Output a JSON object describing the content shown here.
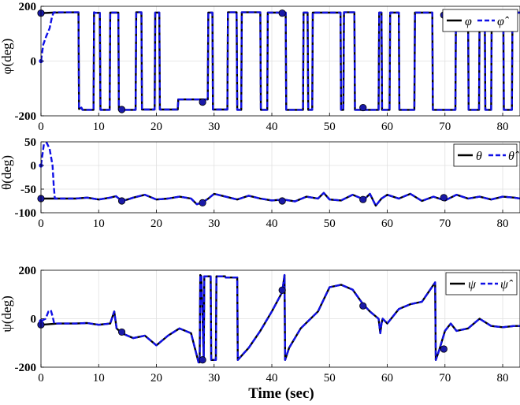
{
  "figure": {
    "xlabel": "Time (sec)"
  },
  "colors": {
    "true": "#000000",
    "estimate": "#1010e6",
    "marker_face": "#1a1aa8"
  },
  "chart_data": [
    {
      "type": "line",
      "ylabel": "φ(deg)",
      "xlim": [
        0,
        83
      ],
      "ylim": [
        -200,
        200
      ],
      "xticks": [
        "0",
        "10",
        "20",
        "30",
        "40",
        "50",
        "60",
        "70",
        "80"
      ],
      "yticks": [
        "200",
        "0",
        "-200"
      ],
      "grid": true,
      "legend_position": "top-right",
      "legend": [
        "φ",
        "φ̂"
      ],
      "series": [
        {
          "name": "φ",
          "style": "solid",
          "x": [
            0,
            2,
            6.5,
            6.6,
            7,
            7.2,
            9.1,
            9.2,
            9.4,
            10.2,
            10.3,
            11.9,
            12.0,
            13.4,
            13.5,
            16.4,
            16.5,
            17.4,
            17.5,
            19.7,
            19.8,
            20.5,
            20.6,
            23.7,
            23.8,
            28.9,
            29.0,
            29.7,
            29.8,
            32.3,
            32.4,
            33.9,
            34.0,
            34.7,
            34.8,
            38.0,
            38.1,
            39.2,
            39.3,
            42.4,
            42.5,
            45.4,
            45.5,
            46.2,
            46.3,
            47.0,
            47.1,
            51.9,
            52.0,
            52.4,
            52.5,
            54.3,
            54.4,
            58.5,
            58.6,
            59.0,
            59.1,
            60.4,
            60.5,
            62.0,
            62.1,
            64.7,
            64.8,
            67.8,
            67.9,
            71.8,
            71.9,
            74.0,
            74.1,
            75.9,
            76.0,
            76.9,
            77.0,
            78.0,
            78.1,
            80.1,
            80.2,
            81.6,
            81.7,
            83
          ],
          "y": [
            175,
            177,
            178,
            -175,
            -170,
            -178,
            -178,
            178,
            176,
            176,
            -178,
            -178,
            177,
            177,
            -178,
            -178,
            178,
            178,
            -177,
            -177,
            177,
            177,
            -177,
            -177,
            -140,
            -140,
            177,
            177,
            -177,
            -177,
            178,
            178,
            -178,
            -178,
            178,
            178,
            -178,
            -178,
            177,
            177,
            -178,
            -178,
            177,
            177,
            -178,
            -178,
            177,
            177,
            -178,
            -178,
            178,
            178,
            -178,
            -178,
            177,
            177,
            -178,
            -178,
            177,
            177,
            -178,
            -178,
            177,
            177,
            -178,
            -178,
            178,
            178,
            -178,
            -178,
            177,
            177,
            -178,
            -178,
            178,
            178,
            -178,
            -178,
            177,
            177
          ]
        },
        {
          "name": "φ̂",
          "style": "dashed",
          "x": [
            0,
            0.4,
            0.9,
            1.5,
            1.9,
            2.2,
            6.5,
            6.6,
            7,
            7.2,
            9.1,
            9.2,
            9.4,
            10.2,
            10.3,
            11.9,
            12.0,
            13.4,
            13.5,
            16.4,
            16.5,
            17.4,
            17.5,
            19.7,
            19.8,
            20.5,
            20.6,
            23.7,
            23.8,
            28.9,
            29.0,
            29.7,
            29.8,
            32.3,
            32.4,
            33.9,
            34.0,
            34.7,
            34.8,
            38.0,
            38.1,
            39.2,
            39.3,
            42.4,
            42.5,
            45.4,
            45.5,
            46.2,
            46.3,
            47.0,
            47.1,
            51.9,
            52.0,
            52.4,
            52.5,
            54.3,
            54.4,
            58.5,
            58.6,
            59.0,
            59.1,
            60.4,
            60.5,
            62.0,
            62.1,
            64.7,
            64.8,
            67.8,
            67.9,
            71.8,
            71.9,
            74.0,
            74.1,
            75.9,
            76.0,
            76.9,
            77.0,
            78.0,
            78.1,
            80.1,
            80.2,
            81.6,
            81.7,
            83
          ],
          "y": [
            0,
            60,
            90,
            120,
            160,
            178,
            178,
            -175,
            -170,
            -178,
            -178,
            178,
            176,
            176,
            -178,
            -178,
            177,
            177,
            -178,
            -178,
            178,
            178,
            -177,
            -177,
            177,
            177,
            -177,
            -177,
            -140,
            -140,
            177,
            177,
            -177,
            -177,
            178,
            178,
            -178,
            -178,
            178,
            178,
            -178,
            -178,
            177,
            177,
            -178,
            -178,
            177,
            177,
            -178,
            -178,
            177,
            177,
            -178,
            -178,
            178,
            178,
            -178,
            -178,
            177,
            177,
            -178,
            -178,
            177,
            177,
            -178,
            -178,
            177,
            177,
            -178,
            -178,
            178,
            178,
            -178,
            -178,
            177,
            177,
            -178,
            -178,
            178,
            178,
            -178,
            -178,
            177,
            177
          ]
        }
      ],
      "markers": {
        "x": [
          0,
          14,
          28,
          41.8,
          55.8,
          69.8
        ],
        "y": [
          175,
          -177,
          -150,
          175,
          -170,
          168
        ]
      }
    },
    {
      "type": "line",
      "ylabel": "θ(deg)",
      "xlim": [
        0,
        83
      ],
      "ylim": [
        -100,
        50
      ],
      "xticks": [
        "0",
        "10",
        "20",
        "30",
        "40",
        "50",
        "60",
        "70",
        "80"
      ],
      "yticks": [
        "50",
        "0",
        "-50",
        "-100"
      ],
      "grid": true,
      "legend_position": "top-right",
      "legend": [
        "θ",
        "θ̂"
      ],
      "series": [
        {
          "name": "θ",
          "style": "solid",
          "x": [
            0,
            2,
            4,
            6,
            8,
            10,
            12,
            13,
            14,
            15,
            16,
            18,
            20,
            22,
            24,
            26,
            27,
            28,
            29,
            30,
            32,
            34,
            36,
            38,
            40,
            42,
            44,
            46,
            48,
            49,
            50,
            52,
            54,
            56,
            57,
            58,
            59,
            60,
            62,
            64,
            66,
            68,
            70,
            72,
            74,
            76,
            78,
            80,
            82,
            83
          ],
          "y": [
            -70,
            -70,
            -70,
            -70,
            -68,
            -72,
            -68,
            -65,
            -75,
            -72,
            -68,
            -62,
            -72,
            -70,
            -66,
            -70,
            -82,
            -78,
            -70,
            -60,
            -66,
            -72,
            -64,
            -70,
            -74,
            -72,
            -76,
            -66,
            -70,
            -58,
            -72,
            -74,
            -62,
            -72,
            -60,
            -85,
            -70,
            -62,
            -70,
            -60,
            -75,
            -66,
            -74,
            -62,
            -70,
            -66,
            -72,
            -66,
            -68,
            -70
          ]
        },
        {
          "name": "θ̂",
          "style": "dashed",
          "x": [
            0,
            0.5,
            1,
            1.5,
            2,
            2.2,
            2.4,
            4,
            6,
            8,
            10,
            12,
            13,
            14,
            15,
            16,
            18,
            20,
            22,
            24,
            26,
            27,
            28,
            29,
            30,
            32,
            34,
            36,
            38,
            40,
            42,
            44,
            46,
            48,
            49,
            50,
            52,
            54,
            56,
            57,
            58,
            59,
            60,
            62,
            64,
            66,
            68,
            70,
            72,
            74,
            76,
            78,
            80,
            82,
            83
          ],
          "y": [
            0,
            45,
            48,
            35,
            0,
            -40,
            -70,
            -70,
            -70,
            -68,
            -72,
            -68,
            -65,
            -75,
            -72,
            -68,
            -62,
            -72,
            -70,
            -66,
            -70,
            -82,
            -78,
            -70,
            -60,
            -66,
            -72,
            -64,
            -70,
            -74,
            -72,
            -76,
            -66,
            -70,
            -58,
            -72,
            -74,
            -62,
            -72,
            -60,
            -85,
            -70,
            -62,
            -70,
            -60,
            -75,
            -66,
            -74,
            -62,
            -70,
            -66,
            -72,
            -66,
            -68,
            -70
          ]
        }
      ],
      "markers": {
        "x": [
          0,
          14,
          28,
          41.8,
          55.8,
          69.8
        ],
        "y": [
          -70,
          -75,
          -79,
          -75,
          -72,
          -68
        ]
      }
    },
    {
      "type": "line",
      "ylabel": "ψ(deg)",
      "xlim": [
        0,
        83
      ],
      "ylim": [
        -200,
        200
      ],
      "xticks": [
        "0",
        "10",
        "20",
        "30",
        "40",
        "50",
        "60",
        "70",
        "80"
      ],
      "yticks": [
        "200",
        "0",
        "-200"
      ],
      "grid": true,
      "legend_position": "top-right",
      "legend": [
        "ψ",
        "ψ̂"
      ],
      "series": [
        {
          "name": "ψ",
          "style": "solid",
          "x": [
            0,
            3,
            6,
            8,
            10,
            12,
            12.7,
            13.1,
            14,
            16,
            18,
            20,
            22,
            24,
            26,
            27.3,
            27.5,
            27.6,
            27.8,
            28.2,
            28.3,
            29.4,
            29.5,
            30.3,
            30.4,
            31.9,
            32.0,
            34.0,
            34.1,
            36,
            38,
            40,
            41.8,
            42.2,
            42.3,
            43,
            45,
            48,
            50,
            52,
            54,
            55.8,
            57,
            58.5,
            58.8,
            59.0,
            59.2,
            60,
            62,
            64,
            66,
            68.3,
            68.4,
            69,
            70,
            71,
            72,
            74,
            76,
            78,
            80,
            82,
            83
          ],
          "y": [
            -25,
            -20,
            -20,
            -18,
            -25,
            -20,
            30,
            -40,
            -60,
            -80,
            -70,
            -110,
            -70,
            -40,
            -60,
            -180,
            -180,
            180,
            175,
            -170,
            175,
            175,
            -170,
            -170,
            175,
            175,
            170,
            170,
            -170,
            -120,
            -50,
            30,
            110,
            180,
            -170,
            -120,
            -40,
            30,
            130,
            140,
            120,
            60,
            30,
            0,
            -60,
            -20,
            0,
            -20,
            40,
            60,
            70,
            150,
            -170,
            -130,
            -50,
            -20,
            -50,
            -40,
            0,
            -30,
            -35,
            -30,
            -30
          ]
        },
        {
          "name": "ψ̂",
          "style": "dashed",
          "x": [
            0,
            0.8,
            1.3,
            1.7,
            2.0,
            2.3,
            3,
            6,
            8,
            10,
            12,
            12.7,
            13.1,
            14,
            16,
            18,
            20,
            22,
            24,
            26,
            27.3,
            27.5,
            27.6,
            27.8,
            28.2,
            28.3,
            29.4,
            29.5,
            30.3,
            30.4,
            31.9,
            32.0,
            34.0,
            34.1,
            36,
            38,
            40,
            41.8,
            42.2,
            42.3,
            43,
            45,
            48,
            50,
            52,
            54,
            55.8,
            57,
            58.5,
            58.8,
            59.0,
            59.2,
            60,
            62,
            64,
            66,
            68.3,
            68.4,
            69,
            70,
            71,
            72,
            74,
            76,
            78,
            80,
            82,
            83
          ],
          "y": [
            -10,
            0,
            30,
            35,
            10,
            -20,
            -20,
            -20,
            -18,
            -25,
            -20,
            30,
            -40,
            -60,
            -80,
            -70,
            -110,
            -70,
            -40,
            -60,
            -180,
            -180,
            180,
            175,
            -170,
            175,
            175,
            -170,
            -170,
            175,
            175,
            170,
            170,
            -170,
            -120,
            -50,
            30,
            110,
            180,
            -170,
            -120,
            -40,
            30,
            130,
            140,
            120,
            60,
            30,
            0,
            -60,
            -20,
            0,
            -20,
            40,
            60,
            70,
            150,
            -170,
            -130,
            -50,
            -20,
            -50,
            -40,
            0,
            -30,
            -35,
            -30,
            -30
          ]
        }
      ],
      "markers": {
        "x": [
          0,
          14,
          28,
          41.8,
          55.8,
          69.8
        ],
        "y": [
          -25,
          -55,
          -170,
          118,
          53,
          -125
        ]
      }
    }
  ]
}
